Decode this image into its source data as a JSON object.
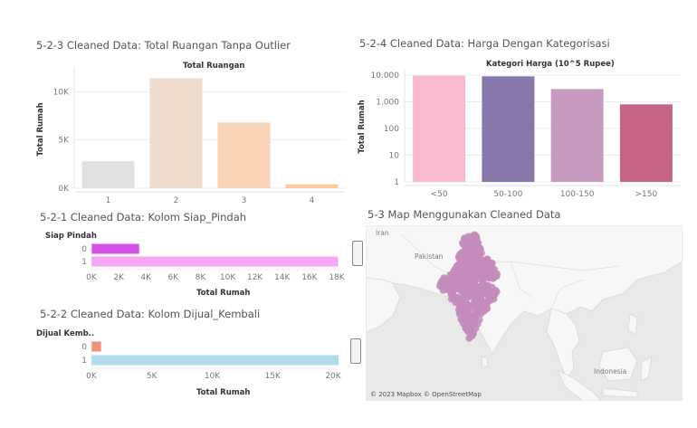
{
  "panels": {
    "total_ruangan": {
      "title": "5-2-3 Cleaned Data: Total Ruangan Tanpa Outlier",
      "header": "Total Ruangan",
      "ylabel": "Total Rumah"
    },
    "harga": {
      "title": "5-2-4 Cleaned Data: Harga Dengan Kategorisasi",
      "header": "Kategori Harga (10^5 Rupee)",
      "ylabel": "Total Rumah"
    },
    "siap_pindah": {
      "title": "5-2-1 Cleaned Data: Kolom Siap_Pindah",
      "row_header": "Siap Pindah",
      "xlabel": "Total Rumah"
    },
    "dijual_kembali": {
      "title": "5-2-2 Cleaned Data: Kolom Dijual_Kembali",
      "row_header": "Dijual Kemb..",
      "xlabel": "Total Rumah"
    },
    "map": {
      "title": "5-3 Map Menggunakan Cleaned Data",
      "labels": {
        "iran": "Iran",
        "pakistan": "Pakistan",
        "indonesia": "Indonesia"
      },
      "credit": "© 2023 Mapbox © OpenStreetMap",
      "point_color": "#c48bbd"
    }
  },
  "chart_data": [
    {
      "id": "total_ruangan",
      "type": "bar",
      "categories": [
        "1",
        "2",
        "3",
        "4"
      ],
      "values": [
        2800,
        11400,
        6800,
        400
      ],
      "colors": [
        "#e1e1e1",
        "#efdccd",
        "#f8d3b5",
        "#f9c99a"
      ],
      "title": "Total Ruangan",
      "xlabel": "",
      "ylabel": "Total Rumah",
      "ylim": [
        0,
        12000
      ],
      "yticks": [
        0,
        5000,
        10000
      ],
      "ytick_labels": [
        "0K",
        "5K",
        "10K"
      ],
      "grid": true
    },
    {
      "id": "harga",
      "type": "bar",
      "scale": "log",
      "categories": [
        "<50",
        "50-100",
        "100-150",
        ">150"
      ],
      "values": [
        9500,
        9000,
        3000,
        800
      ],
      "colors": [
        "#f8b9d1",
        "#8877ab",
        "#c89ac0",
        "#c56487"
      ],
      "title": "Kategori Harga (10^5 Rupee)",
      "xlabel": "",
      "ylabel": "Total Rumah",
      "ylim": [
        1,
        10000
      ],
      "yticks": [
        1,
        10,
        100,
        1000,
        10000
      ],
      "ytick_labels": [
        "1",
        "10",
        "100",
        "1.000",
        "10.000"
      ],
      "grid": true
    },
    {
      "id": "siap_pindah",
      "type": "bar",
      "orientation": "horizontal",
      "categories": [
        "0",
        "1"
      ],
      "values": [
        3500,
        18100
      ],
      "colors": [
        "#d450e8",
        "#f6a6f3"
      ],
      "title": "Siap Pindah",
      "xlabel": "Total Rumah",
      "ylabel": "",
      "xlim": [
        0,
        18000
      ],
      "xticks": [
        0,
        2000,
        4000,
        6000,
        8000,
        10000,
        12000,
        14000,
        16000,
        18000
      ],
      "xtick_labels": [
        "0K",
        "2K",
        "4K",
        "6K",
        "8K",
        "10K",
        "12K",
        "14K",
        "16K",
        "18K"
      ]
    },
    {
      "id": "dijual_kembali",
      "type": "bar",
      "orientation": "horizontal",
      "categories": [
        "0",
        "1"
      ],
      "values": [
        800,
        20800
      ],
      "colors": [
        "#f48f7c",
        "#b2dcee"
      ],
      "title": "Dijual Kemb..",
      "xlabel": "Total Rumah",
      "ylabel": "",
      "xlim": [
        0,
        20000
      ],
      "xticks": [
        0,
        5000,
        10000,
        15000,
        20000
      ],
      "xtick_labels": [
        "0K",
        "5K",
        "10K",
        "15K",
        "20K"
      ]
    }
  ]
}
